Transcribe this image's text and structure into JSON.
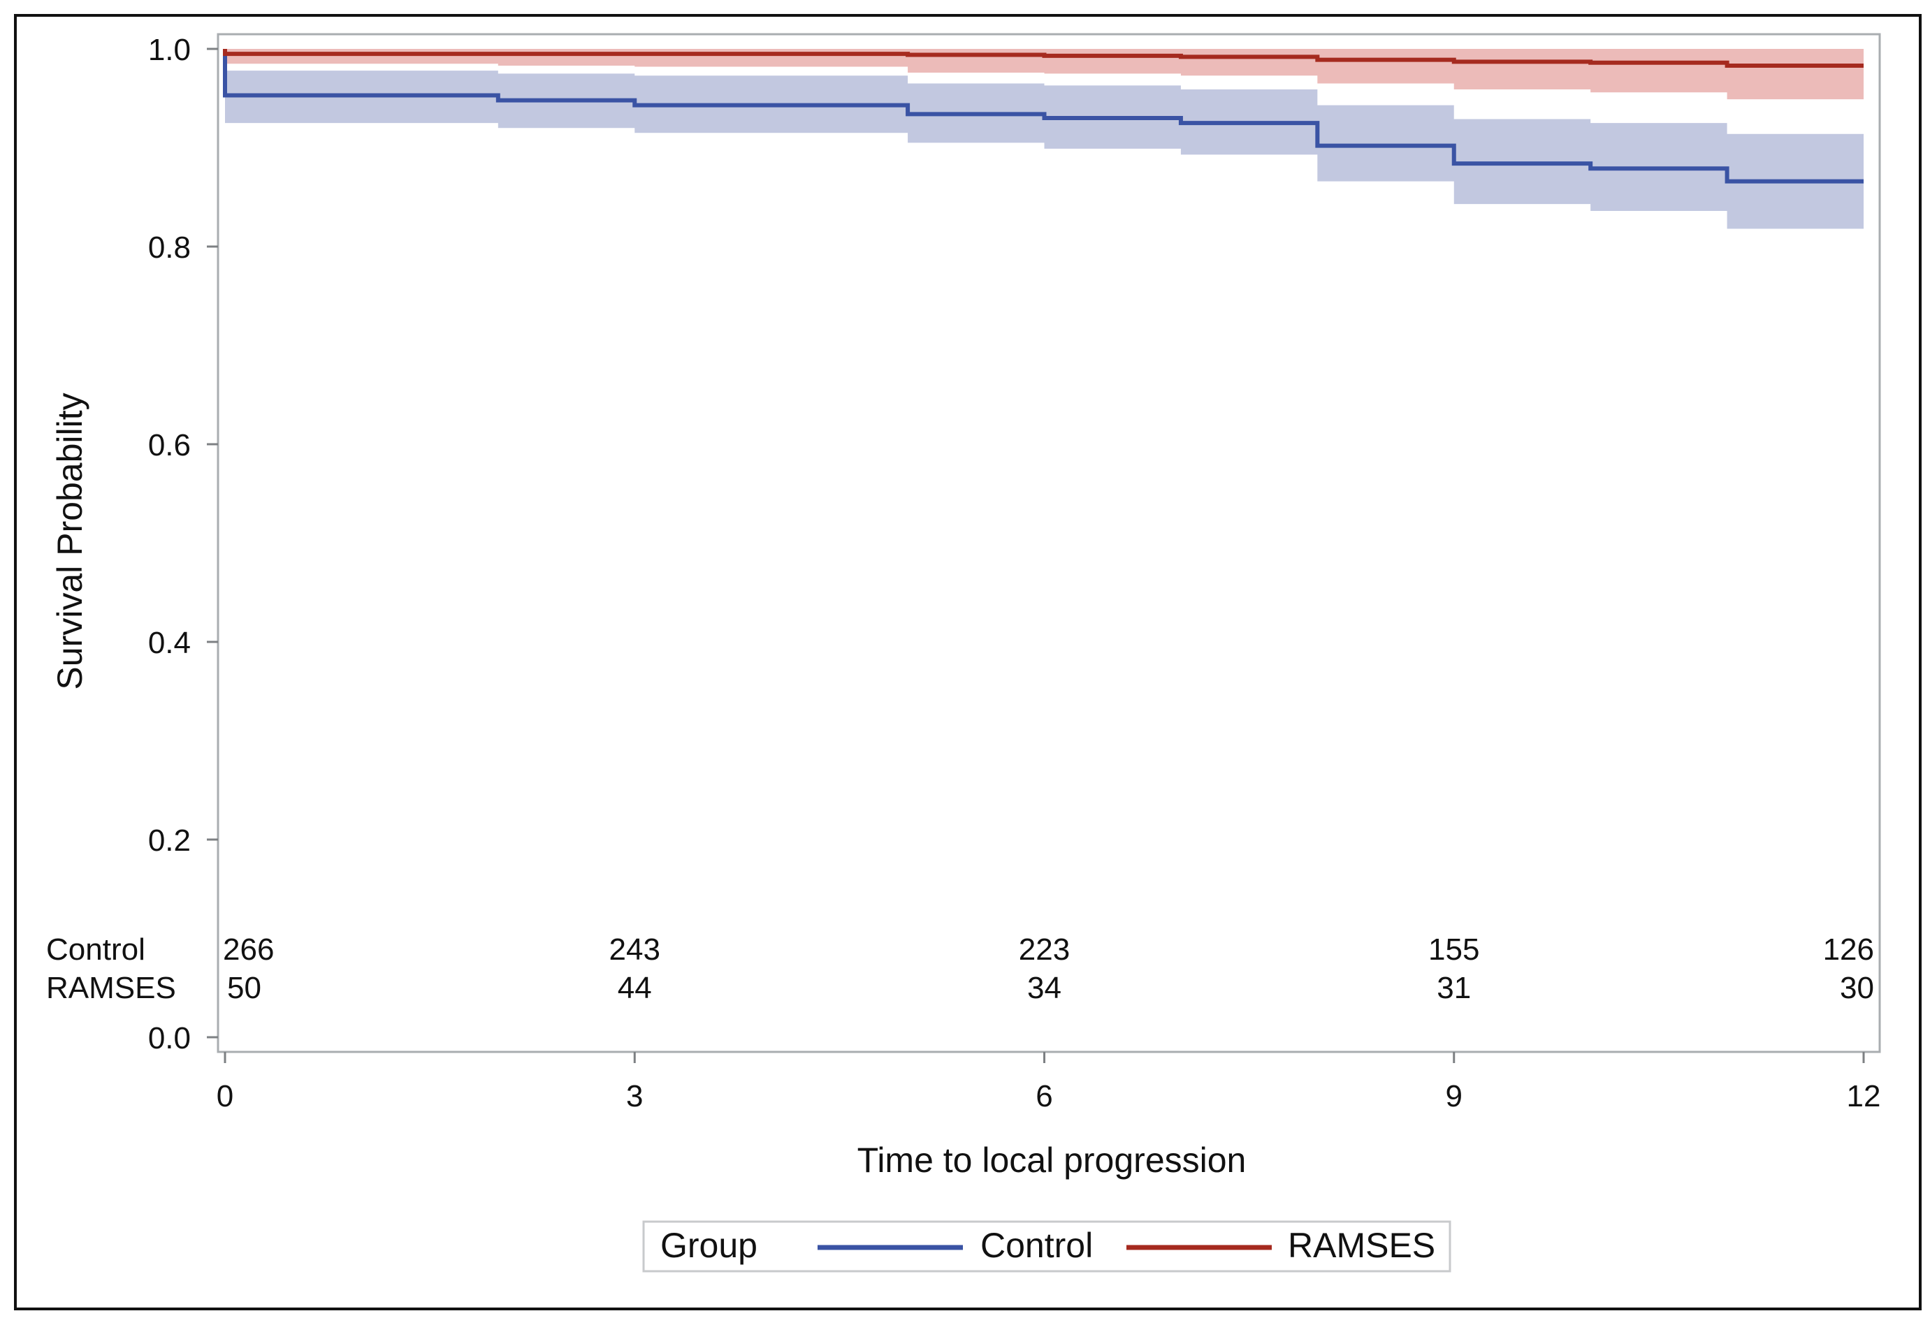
{
  "chart_data": {
    "type": "line",
    "subtype": "kaplan-meier step curves with confidence bands",
    "xlabel": "Time to local progression",
    "ylabel": "Survival Probability",
    "xlim": [
      0,
      12
    ],
    "ylim": [
      0,
      1.0
    ],
    "x_ticks": [
      0,
      3,
      6,
      9,
      12
    ],
    "x_tick_labels": [
      "0",
      "3",
      "6",
      "9",
      "12"
    ],
    "y_ticks": [
      0,
      0.2,
      0.4,
      0.6,
      0.8,
      1.0
    ],
    "y_tick_labels": [
      "0.0",
      "0.2",
      "0.4",
      "0.6",
      "0.8",
      "1.0"
    ],
    "grid": false,
    "legend": {
      "title": "Group",
      "placement": "bottom",
      "entries": [
        "Control",
        "RAMSES"
      ]
    },
    "series": [
      {
        "name": "Control",
        "color": "#3a53a4",
        "band_color": "#bfc5de",
        "step_times": [
          0,
          2,
          3,
          5,
          6,
          7,
          8,
          9,
          10,
          11,
          12
        ],
        "survival": [
          0.953,
          0.948,
          0.943,
          0.934,
          0.93,
          0.925,
          0.902,
          0.884,
          0.879,
          0.866,
          0.866
        ],
        "ci_lower": [
          0.925,
          0.92,
          0.915,
          0.905,
          0.899,
          0.893,
          0.866,
          0.843,
          0.836,
          0.818,
          0.818
        ],
        "ci_upper": [
          0.978,
          0.975,
          0.973,
          0.965,
          0.963,
          0.959,
          0.943,
          0.929,
          0.925,
          0.914,
          0.914
        ]
      },
      {
        "name": "RAMSES",
        "color": "#a52a1f",
        "band_color": "#ebb7b5",
        "step_times": [
          0,
          2,
          3,
          5,
          6,
          7,
          8,
          9,
          10,
          11,
          12
        ],
        "survival": [
          0.995,
          0.995,
          0.995,
          0.994,
          0.993,
          0.992,
          0.989,
          0.987,
          0.986,
          0.983,
          0.983
        ],
        "ci_lower": [
          0.985,
          0.983,
          0.982,
          0.976,
          0.975,
          0.973,
          0.965,
          0.959,
          0.956,
          0.949,
          0.949
        ],
        "ci_upper": [
          1.0,
          1.0,
          1.0,
          1.0,
          1.0,
          1.0,
          1.0,
          1.0,
          1.0,
          1.0,
          1.0
        ]
      }
    ],
    "at_risk": {
      "times": [
        0,
        3,
        6,
        9,
        12
      ],
      "rows": [
        {
          "label": "Control",
          "values": [
            "266",
            "243",
            "223",
            "155",
            "126"
          ]
        },
        {
          "label": "RAMSES",
          "values": [
            "50",
            "44",
            "34",
            "31",
            "30"
          ]
        }
      ]
    }
  }
}
